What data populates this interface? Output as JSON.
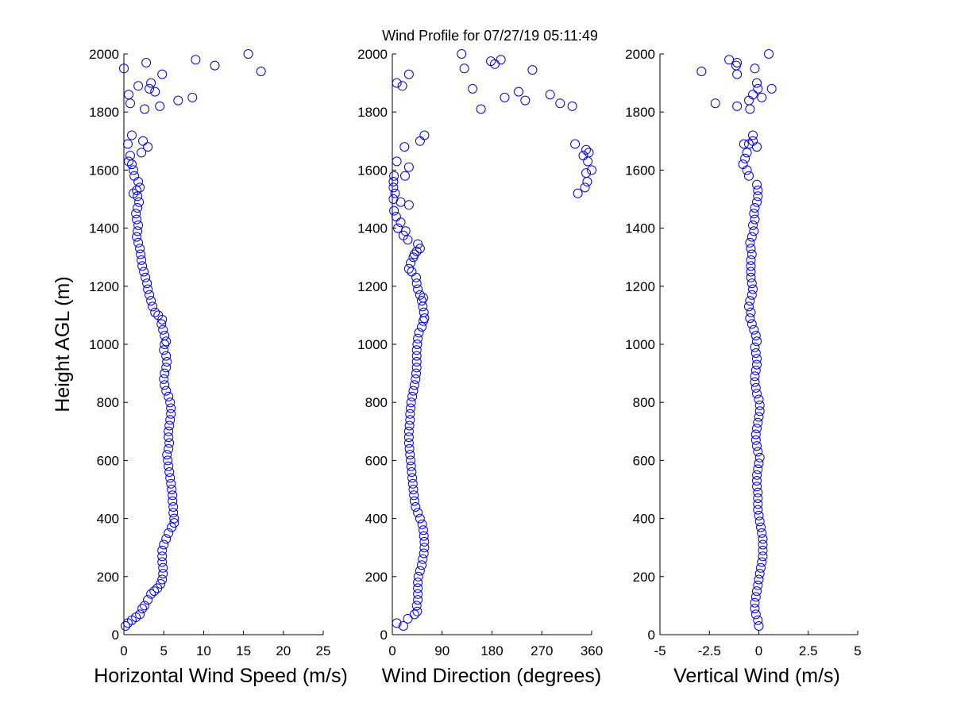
{
  "title": "Wind Profile for  07/27/19 05:11:49",
  "colors": {
    "marker": "#0000ff",
    "axis": "#000000"
  },
  "chart_data": [
    {
      "type": "scatter",
      "xlabel": "Horizontal Wind Speed (m/s)",
      "ylabel": "Height AGL (m)",
      "xlim": [
        0,
        25
      ],
      "ylim": [
        0,
        2000
      ],
      "xticks": [
        0,
        5,
        10,
        15,
        20,
        25
      ],
      "xtick_labels": [
        "0",
        "5",
        "10",
        "15",
        "20",
        "25"
      ],
      "yticks": [
        0,
        200,
        400,
        600,
        800,
        1000,
        1200,
        1400,
        1600,
        1800,
        2000
      ],
      "ytick_labels": [
        "0",
        "200",
        "400",
        "600",
        "800",
        "1000",
        "1200",
        "1400",
        "1600",
        "1800",
        "2000"
      ],
      "points": [
        [
          0.2,
          30
        ],
        [
          0.5,
          40
        ],
        [
          1.0,
          50
        ],
        [
          1.5,
          60
        ],
        [
          2.0,
          70
        ],
        [
          2.3,
          90
        ],
        [
          2.6,
          100
        ],
        [
          3.0,
          120
        ],
        [
          3.4,
          140
        ],
        [
          3.8,
          150
        ],
        [
          4.2,
          160
        ],
        [
          4.6,
          175
        ],
        [
          4.8,
          190
        ],
        [
          4.9,
          210
        ],
        [
          4.9,
          230
        ],
        [
          4.8,
          250
        ],
        [
          4.8,
          270
        ],
        [
          4.8,
          290
        ],
        [
          5.0,
          310
        ],
        [
          5.3,
          330
        ],
        [
          5.6,
          350
        ],
        [
          6.0,
          370
        ],
        [
          6.3,
          385
        ],
        [
          6.3,
          400
        ],
        [
          6.2,
          420
        ],
        [
          6.2,
          440
        ],
        [
          6.1,
          460
        ],
        [
          6.1,
          480
        ],
        [
          6.0,
          500
        ],
        [
          5.9,
          520
        ],
        [
          5.8,
          540
        ],
        [
          5.7,
          560
        ],
        [
          5.6,
          580
        ],
        [
          5.5,
          600
        ],
        [
          5.4,
          620
        ],
        [
          5.6,
          640
        ],
        [
          5.7,
          660
        ],
        [
          5.6,
          680
        ],
        [
          5.6,
          700
        ],
        [
          5.7,
          720
        ],
        [
          5.8,
          740
        ],
        [
          5.9,
          760
        ],
        [
          5.9,
          780
        ],
        [
          5.8,
          800
        ],
        [
          5.6,
          820
        ],
        [
          5.3,
          840
        ],
        [
          5.1,
          860
        ],
        [
          5.0,
          880
        ],
        [
          5.1,
          900
        ],
        [
          5.3,
          920
        ],
        [
          5.4,
          940
        ],
        [
          5.3,
          960
        ],
        [
          5.0,
          980
        ],
        [
          5.1,
          1000
        ],
        [
          5.3,
          1010
        ],
        [
          5.1,
          1030
        ],
        [
          4.9,
          1050
        ],
        [
          4.7,
          1070
        ],
        [
          4.8,
          1085
        ],
        [
          4.3,
          1100
        ],
        [
          3.9,
          1110
        ],
        [
          3.6,
          1130
        ],
        [
          3.4,
          1150
        ],
        [
          3.2,
          1170
        ],
        [
          3.0,
          1190
        ],
        [
          2.9,
          1210
        ],
        [
          2.7,
          1230
        ],
        [
          2.5,
          1250
        ],
        [
          2.3,
          1270
        ],
        [
          2.2,
          1290
        ],
        [
          2.1,
          1310
        ],
        [
          2.0,
          1330
        ],
        [
          1.8,
          1350
        ],
        [
          1.6,
          1370
        ],
        [
          1.7,
          1390
        ],
        [
          1.8,
          1410
        ],
        [
          1.6,
          1430
        ],
        [
          1.5,
          1450
        ],
        [
          1.7,
          1470
        ],
        [
          1.9,
          1490
        ],
        [
          1.7,
          1510
        ],
        [
          1.2,
          1520
        ],
        [
          1.6,
          1530
        ],
        [
          2.0,
          1540
        ],
        [
          1.8,
          1560
        ],
        [
          1.3,
          1580
        ],
        [
          1.2,
          1600
        ],
        [
          1.0,
          1620
        ],
        [
          0.6,
          1630
        ],
        [
          0.8,
          1650
        ],
        [
          2.2,
          1660
        ],
        [
          0.5,
          1690
        ],
        [
          2.4,
          1700
        ],
        [
          3.0,
          1680
        ],
        [
          1.0,
          1720
        ],
        [
          2.6,
          1810
        ],
        [
          0.8,
          1830
        ],
        [
          4.5,
          1820
        ],
        [
          6.8,
          1840
        ],
        [
          8.6,
          1850
        ],
        [
          0.6,
          1860
        ],
        [
          3.2,
          1880
        ],
        [
          3.9,
          1870
        ],
        [
          1.8,
          1890
        ],
        [
          3.4,
          1900
        ],
        [
          4.8,
          1930
        ],
        [
          0.0,
          1950
        ],
        [
          11.4,
          1960
        ],
        [
          2.8,
          1970
        ],
        [
          9.0,
          1980
        ],
        [
          15.6,
          2000
        ],
        [
          17.2,
          1940
        ]
      ]
    },
    {
      "type": "scatter",
      "xlabel": "Wind Direction (degrees)",
      "ylabel": "",
      "xlim": [
        0,
        360
      ],
      "ylim": [
        0,
        2000
      ],
      "xticks": [
        0,
        90,
        180,
        270,
        360
      ],
      "xtick_labels": [
        "0",
        "90",
        "180",
        "270",
        "360"
      ],
      "yticks": [
        0,
        200,
        400,
        600,
        800,
        1000,
        1200,
        1400,
        1600,
        1800,
        2000
      ],
      "ytick_labels": [
        "0",
        "200",
        "400",
        "600",
        "800",
        "1000",
        "1200",
        "1400",
        "1600",
        "1800",
        "2000"
      ],
      "points": [
        [
          8,
          40
        ],
        [
          20,
          30
        ],
        [
          28,
          55
        ],
        [
          40,
          70
        ],
        [
          45,
          80
        ],
        [
          44,
          100
        ],
        [
          46,
          120
        ],
        [
          46,
          140
        ],
        [
          46,
          160
        ],
        [
          46,
          180
        ],
        [
          47,
          200
        ],
        [
          50,
          220
        ],
        [
          53,
          240
        ],
        [
          55,
          260
        ],
        [
          57,
          280
        ],
        [
          58,
          300
        ],
        [
          58,
          320
        ],
        [
          57,
          340
        ],
        [
          56,
          360
        ],
        [
          54,
          380
        ],
        [
          50,
          400
        ],
        [
          46,
          420
        ],
        [
          42,
          440
        ],
        [
          40,
          460
        ],
        [
          39,
          480
        ],
        [
          38,
          500
        ],
        [
          37,
          520
        ],
        [
          36,
          540
        ],
        [
          35,
          560
        ],
        [
          34,
          580
        ],
        [
          33,
          600
        ],
        [
          32,
          620
        ],
        [
          31,
          640
        ],
        [
          30,
          660
        ],
        [
          30,
          680
        ],
        [
          30,
          700
        ],
        [
          31,
          720
        ],
        [
          32,
          740
        ],
        [
          32,
          760
        ],
        [
          33,
          780
        ],
        [
          34,
          800
        ],
        [
          36,
          820
        ],
        [
          38,
          840
        ],
        [
          40,
          860
        ],
        [
          42,
          880
        ],
        [
          43,
          900
        ],
        [
          44,
          920
        ],
        [
          44,
          940
        ],
        [
          44,
          960
        ],
        [
          44,
          980
        ],
        [
          45,
          1000
        ],
        [
          46,
          1020
        ],
        [
          48,
          1040
        ],
        [
          53,
          1060
        ],
        [
          56,
          1080
        ],
        [
          58,
          1090
        ],
        [
          57,
          1110
        ],
        [
          55,
          1130
        ],
        [
          53,
          1150
        ],
        [
          56,
          1160
        ],
        [
          50,
          1170
        ],
        [
          46,
          1190
        ],
        [
          44,
          1210
        ],
        [
          43,
          1230
        ],
        [
          35,
          1250
        ],
        [
          30,
          1260
        ],
        [
          33,
          1280
        ],
        [
          38,
          1300
        ],
        [
          40,
          1310
        ],
        [
          44,
          1320
        ],
        [
          50,
          1330
        ],
        [
          46,
          1345
        ],
        [
          28,
          1360
        ],
        [
          20,
          1375
        ],
        [
          24,
          1390
        ],
        [
          10,
          1400
        ],
        [
          15,
          1420
        ],
        [
          7,
          1440
        ],
        [
          3,
          1460
        ],
        [
          30,
          1480
        ],
        [
          15,
          1490
        ],
        [
          2,
          1500
        ],
        [
          5,
          1520
        ],
        [
          2,
          1540
        ],
        [
          2,
          1560
        ],
        [
          3,
          1580
        ],
        [
          23,
          1580
        ],
        [
          30,
          1610
        ],
        [
          8,
          1630
        ],
        [
          22,
          1680
        ],
        [
          50,
          1700
        ],
        [
          58,
          1720
        ],
        [
          330,
          1690
        ],
        [
          350,
          1670
        ],
        [
          355,
          1660
        ],
        [
          345,
          1650
        ],
        [
          353,
          1630
        ],
        [
          360,
          1600
        ],
        [
          350,
          1590
        ],
        [
          352,
          1560
        ],
        [
          348,
          1540
        ],
        [
          335,
          1520
        ],
        [
          8,
          1900
        ],
        [
          18,
          1890
        ],
        [
          30,
          1930
        ],
        [
          160,
          1810
        ],
        [
          145,
          1880
        ],
        [
          203,
          1850
        ],
        [
          228,
          1870
        ],
        [
          240,
          1840
        ],
        [
          285,
          1860
        ],
        [
          303,
          1830
        ],
        [
          325,
          1820
        ],
        [
          130,
          1950
        ],
        [
          125,
          2000
        ],
        [
          178,
          1975
        ],
        [
          185,
          1965
        ],
        [
          196,
          1980
        ],
        [
          253,
          1945
        ]
      ]
    },
    {
      "type": "scatter",
      "xlabel": "Vertical Wind (m/s)",
      "ylabel": "",
      "xlim": [
        -5,
        5
      ],
      "ylim": [
        0,
        2000
      ],
      "xticks": [
        -5,
        -2.5,
        0,
        2.5,
        5
      ],
      "xtick_labels": [
        "-5",
        "-2.5",
        "0",
        "2.5",
        "5"
      ],
      "yticks": [
        0,
        200,
        400,
        600,
        800,
        1000,
        1200,
        1400,
        1600,
        1800,
        2000
      ],
      "ytick_labels": [
        "0",
        "200",
        "400",
        "600",
        "800",
        "1000",
        "1200",
        "1400",
        "1600",
        "1800",
        "2000"
      ],
      "points": [
        [
          0.0,
          30
        ],
        [
          -0.05,
          50
        ],
        [
          -0.15,
          70
        ],
        [
          -0.2,
          90
        ],
        [
          -0.2,
          110
        ],
        [
          -0.15,
          130
        ],
        [
          -0.1,
          150
        ],
        [
          -0.05,
          170
        ],
        [
          0.0,
          190
        ],
        [
          0.05,
          210
        ],
        [
          0.1,
          230
        ],
        [
          0.15,
          250
        ],
        [
          0.2,
          270
        ],
        [
          0.2,
          290
        ],
        [
          0.2,
          310
        ],
        [
          0.2,
          330
        ],
        [
          0.15,
          350
        ],
        [
          0.1,
          370
        ],
        [
          0.05,
          390
        ],
        [
          0.0,
          410
        ],
        [
          -0.05,
          430
        ],
        [
          -0.05,
          450
        ],
        [
          -0.05,
          470
        ],
        [
          -0.05,
          490
        ],
        [
          -0.1,
          510
        ],
        [
          -0.1,
          530
        ],
        [
          -0.1,
          550
        ],
        [
          -0.05,
          570
        ],
        [
          0.0,
          590
        ],
        [
          0.05,
          610
        ],
        [
          -0.05,
          630
        ],
        [
          -0.1,
          650
        ],
        [
          -0.15,
          670
        ],
        [
          -0.15,
          690
        ],
        [
          -0.1,
          710
        ],
        [
          -0.05,
          730
        ],
        [
          0.0,
          750
        ],
        [
          0.05,
          770
        ],
        [
          0.05,
          790
        ],
        [
          0.0,
          810
        ],
        [
          -0.1,
          830
        ],
        [
          -0.15,
          850
        ],
        [
          -0.2,
          870
        ],
        [
          -0.2,
          890
        ],
        [
          -0.15,
          910
        ],
        [
          -0.1,
          930
        ],
        [
          -0.1,
          950
        ],
        [
          -0.15,
          970
        ],
        [
          -0.2,
          990
        ],
        [
          -0.1,
          1010
        ],
        [
          -0.15,
          1030
        ],
        [
          -0.25,
          1050
        ],
        [
          -0.35,
          1070
        ],
        [
          -0.45,
          1090
        ],
        [
          -0.4,
          1110
        ],
        [
          -0.5,
          1130
        ],
        [
          -0.45,
          1150
        ],
        [
          -0.35,
          1170
        ],
        [
          -0.3,
          1190
        ],
        [
          -0.35,
          1210
        ],
        [
          -0.4,
          1230
        ],
        [
          -0.4,
          1250
        ],
        [
          -0.4,
          1270
        ],
        [
          -0.4,
          1290
        ],
        [
          -0.35,
          1310
        ],
        [
          -0.4,
          1330
        ],
        [
          -0.45,
          1350
        ],
        [
          -0.35,
          1370
        ],
        [
          -0.25,
          1390
        ],
        [
          -0.3,
          1410
        ],
        [
          -0.2,
          1430
        ],
        [
          -0.25,
          1450
        ],
        [
          -0.2,
          1470
        ],
        [
          -0.1,
          1490
        ],
        [
          -0.05,
          1510
        ],
        [
          -0.05,
          1530
        ],
        [
          -0.1,
          1550
        ],
        [
          -0.5,
          1580
        ],
        [
          -0.6,
          1600
        ],
        [
          -0.8,
          1620
        ],
        [
          -0.7,
          1640
        ],
        [
          -0.6,
          1660
        ],
        [
          -0.5,
          1690
        ],
        [
          -0.75,
          1690
        ],
        [
          -0.3,
          1700
        ],
        [
          -0.3,
          1720
        ],
        [
          -0.1,
          1680
        ],
        [
          -2.2,
          1830
        ],
        [
          -1.1,
          1820
        ],
        [
          -0.45,
          1810
        ],
        [
          -0.5,
          1840
        ],
        [
          -0.3,
          1860
        ],
        [
          -0.05,
          1880
        ],
        [
          -0.1,
          1900
        ],
        [
          0.15,
          1850
        ],
        [
          0.65,
          1880
        ],
        [
          -1.1,
          1930
        ],
        [
          -1.15,
          1960
        ],
        [
          -1.1,
          1970
        ],
        [
          -1.5,
          1980
        ],
        [
          -0.2,
          1950
        ],
        [
          -2.9,
          1940
        ],
        [
          0.5,
          2000
        ]
      ]
    }
  ]
}
